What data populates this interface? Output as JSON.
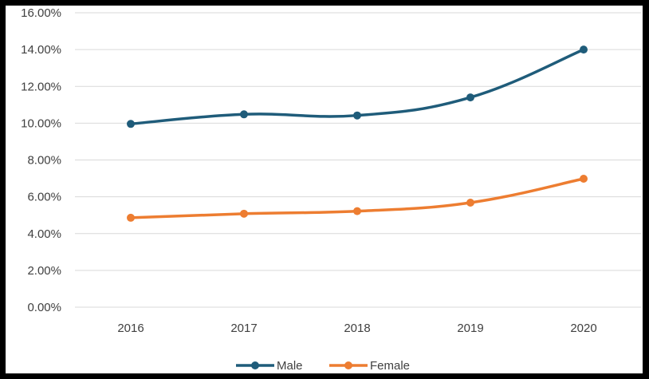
{
  "chart_data": {
    "type": "line",
    "title": "",
    "xlabel": "",
    "ylabel": "",
    "categories": [
      "2016",
      "2017",
      "2018",
      "2019",
      "2020"
    ],
    "series": [
      {
        "name": "Male",
        "color": "#1f5c7a",
        "values": [
          9.96,
          10.48,
          10.42,
          11.4,
          14.0
        ]
      },
      {
        "name": "Female",
        "color": "#ed7d31",
        "values": [
          4.86,
          5.08,
          5.22,
          5.68,
          6.98
        ]
      }
    ],
    "ylim": [
      0,
      16
    ],
    "yticks": [
      0,
      2,
      4,
      6,
      8,
      10,
      12,
      14,
      16
    ],
    "ytick_labels": [
      "0.00%",
      "2.00%",
      "4.00%",
      "6.00%",
      "8.00%",
      "10.00%",
      "12.00%",
      "14.00%",
      "16.00%"
    ],
    "grid": true,
    "legend_position": "bottom",
    "gridline_color": "#d9d9d9",
    "frame_color": "#000000"
  }
}
